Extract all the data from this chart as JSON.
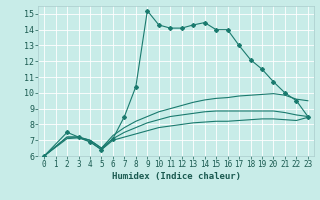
{
  "xlabel": "Humidex (Indice chaleur)",
  "bg_color": "#c8ece8",
  "line_color": "#1a7a6e",
  "grid_color": "#b8ddd8",
  "xlim": [
    -0.5,
    23.5
  ],
  "ylim": [
    6,
    15.5
  ],
  "xticks": [
    0,
    1,
    2,
    3,
    4,
    5,
    6,
    7,
    8,
    9,
    10,
    11,
    12,
    13,
    14,
    15,
    16,
    17,
    18,
    19,
    20,
    21,
    22,
    23
  ],
  "yticks": [
    6,
    7,
    8,
    9,
    10,
    11,
    12,
    13,
    14,
    15
  ],
  "line1_x": [
    0,
    2,
    3,
    4,
    5,
    6,
    7,
    8,
    9,
    10,
    11,
    12,
    13,
    14,
    15,
    16,
    17,
    18,
    19,
    20,
    21,
    22,
    23
  ],
  "line1_y": [
    6.0,
    7.5,
    7.2,
    6.9,
    6.4,
    7.1,
    8.5,
    10.4,
    15.2,
    14.3,
    14.1,
    14.1,
    14.3,
    14.45,
    14.0,
    14.0,
    13.0,
    12.1,
    11.5,
    10.7,
    10.0,
    9.5,
    8.5
  ],
  "line2_x": [
    0,
    2,
    3,
    4,
    5,
    6,
    7,
    8,
    9,
    10,
    11,
    12,
    13,
    14,
    15,
    16,
    17,
    18,
    19,
    20,
    21,
    22,
    23
  ],
  "line2_y": [
    6.0,
    7.2,
    7.2,
    7.0,
    6.5,
    7.3,
    7.8,
    8.2,
    8.5,
    8.8,
    9.0,
    9.2,
    9.4,
    9.55,
    9.65,
    9.7,
    9.8,
    9.85,
    9.9,
    9.95,
    9.85,
    9.6,
    9.5
  ],
  "line3_x": [
    0,
    2,
    3,
    4,
    5,
    6,
    7,
    8,
    9,
    10,
    11,
    12,
    13,
    14,
    15,
    16,
    17,
    18,
    19,
    20,
    21,
    22,
    23
  ],
  "line3_y": [
    6.0,
    7.2,
    7.2,
    7.0,
    6.5,
    7.1,
    7.5,
    7.8,
    8.1,
    8.3,
    8.5,
    8.6,
    8.7,
    8.8,
    8.85,
    8.85,
    8.85,
    8.85,
    8.85,
    8.85,
    8.75,
    8.6,
    8.5
  ],
  "line4_x": [
    0,
    2,
    3,
    4,
    5,
    6,
    7,
    8,
    9,
    10,
    11,
    12,
    13,
    14,
    15,
    16,
    17,
    18,
    19,
    20,
    21,
    22,
    23
  ],
  "line4_y": [
    6.0,
    7.1,
    7.15,
    6.9,
    6.4,
    7.0,
    7.2,
    7.4,
    7.6,
    7.8,
    7.9,
    8.0,
    8.1,
    8.15,
    8.2,
    8.2,
    8.25,
    8.3,
    8.35,
    8.35,
    8.3,
    8.25,
    8.45
  ],
  "marker_size": 2.0,
  "linewidth": 0.8,
  "xlabel_fontsize": 6.5,
  "tick_fontsize": 5.5
}
